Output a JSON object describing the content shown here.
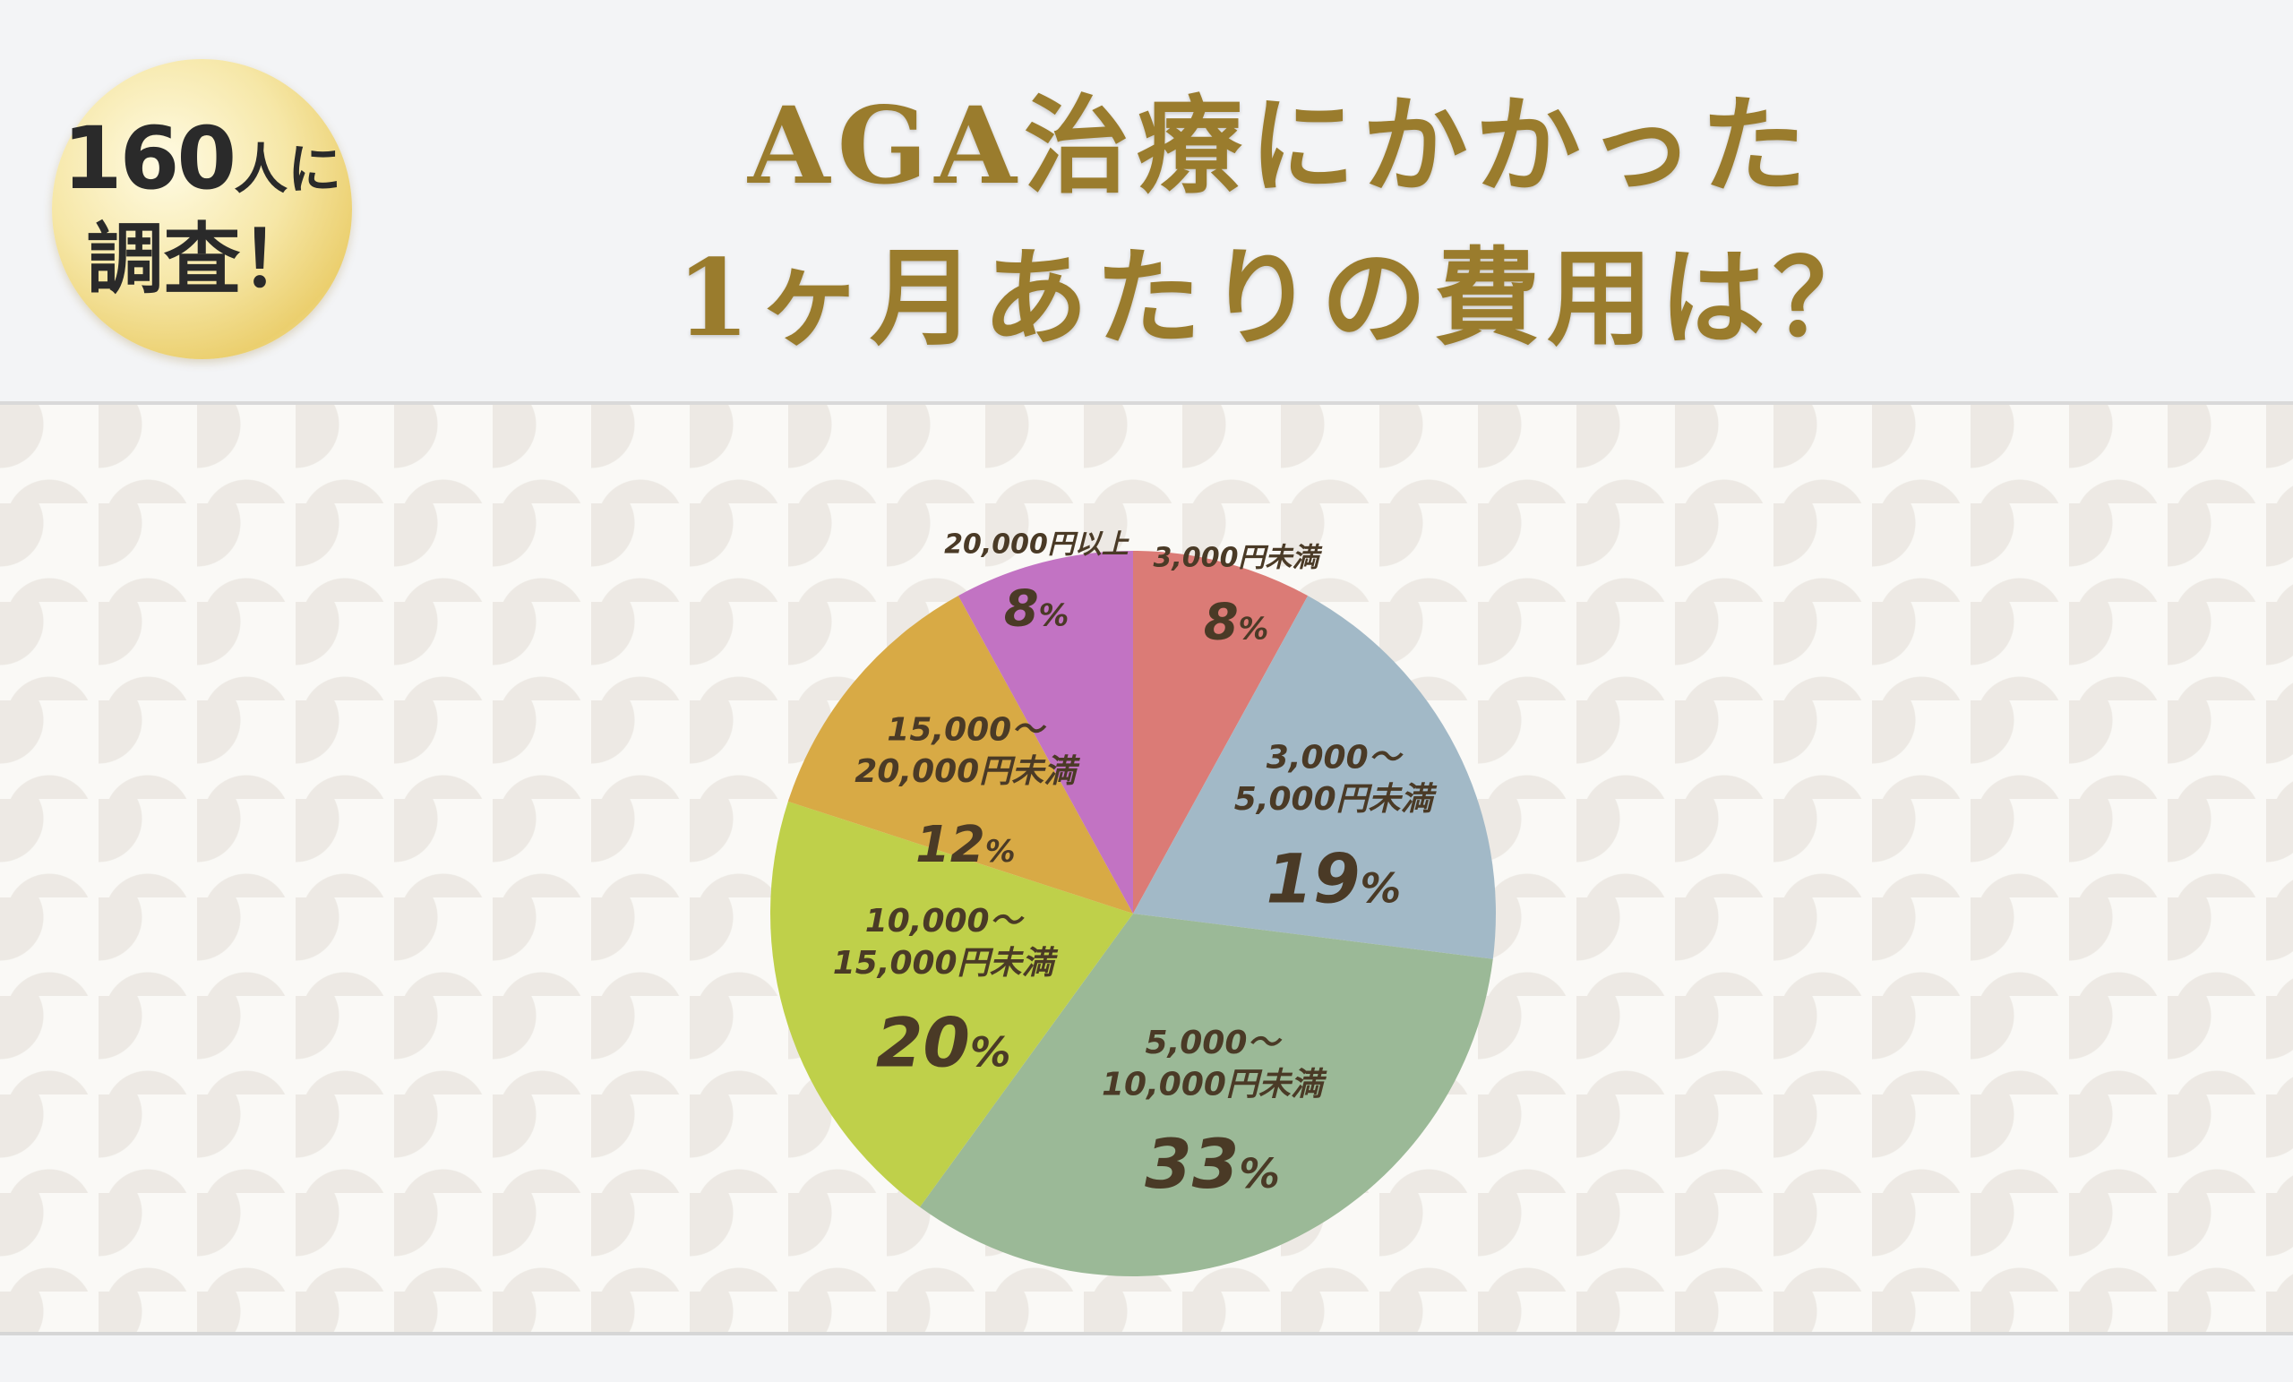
{
  "badge": {
    "count": "160",
    "unit": "人に",
    "line2": "調査！"
  },
  "title": {
    "line1": "AGA治療にかかった",
    "line2": "1ヶ月あたりの費用は？"
  },
  "chart_data": {
    "type": "pie",
    "title": "AGA治療にかかった 1ヶ月あたりの費用は？",
    "slices": [
      {
        "label": [
          "3,000円未満"
        ],
        "value": 8,
        "display": "8",
        "color": "#db7b76"
      },
      {
        "label": [
          "3,000〜",
          "5,000円未満"
        ],
        "value": 19,
        "display": "19",
        "color": "#a2b9c7"
      },
      {
        "label": [
          "5,000〜",
          "10,000円未満"
        ],
        "value": 33,
        "display": "33",
        "color": "#9bb997"
      },
      {
        "label": [
          "10,000〜",
          "15,000円未満"
        ],
        "value": 20,
        "display": "20",
        "color": "#bfd04a"
      },
      {
        "label": [
          "15,000〜",
          "20,000円未満"
        ],
        "value": 12,
        "display": "12",
        "color": "#d8aa45"
      },
      {
        "label": [
          "20,000円以上"
        ],
        "value": 8,
        "display": "8",
        "color": "#c273c3"
      }
    ],
    "percent_sign": "%"
  }
}
